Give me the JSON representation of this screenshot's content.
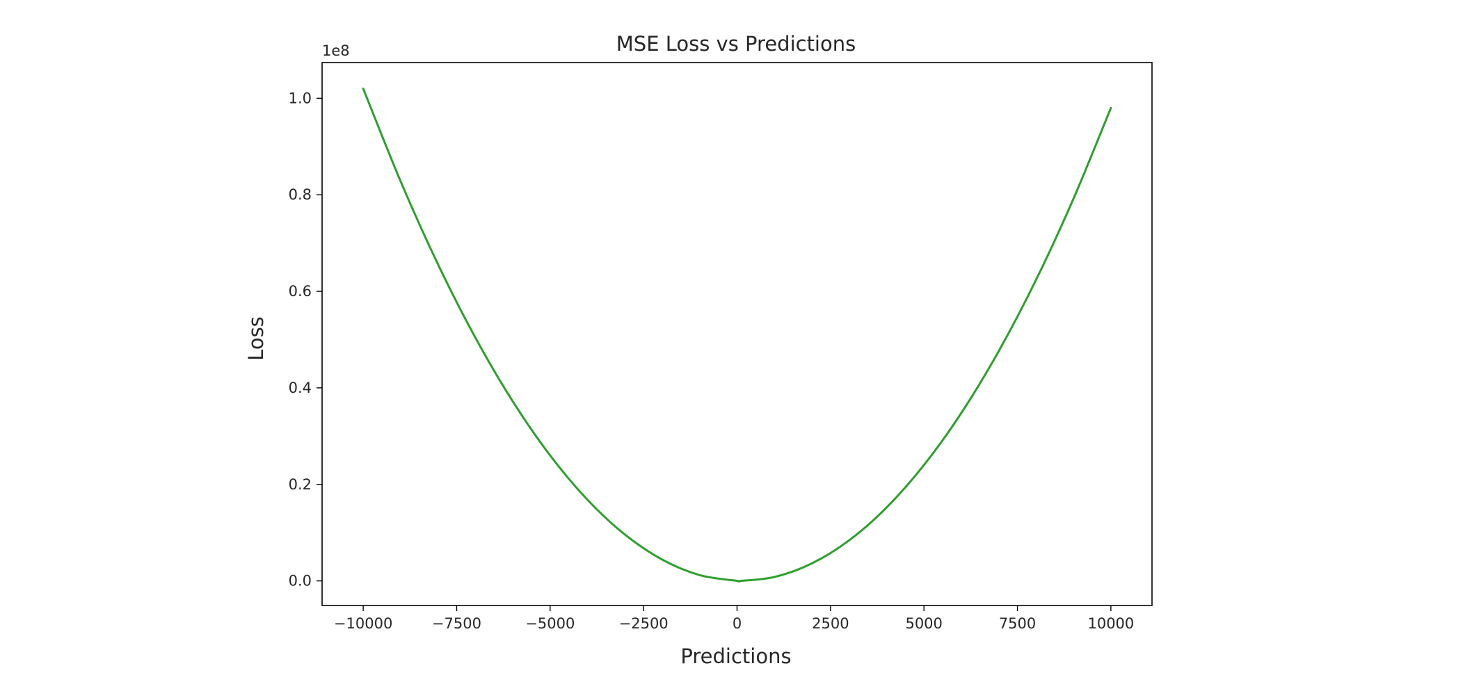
{
  "chart_data": {
    "type": "line",
    "title": "MSE Loss vs Predictions",
    "xlabel": "Predictions",
    "ylabel": "Loss",
    "y_offset_label": "1e8",
    "xlim": [
      -11100,
      11100
    ],
    "ylim": [
      -5100000,
      107400000
    ],
    "x_ticks": [
      -10000,
      -7500,
      -5000,
      -2500,
      0,
      2500,
      5000,
      7500,
      10000
    ],
    "x_tick_labels": [
      "−10000",
      "−7500",
      "−5000",
      "−2500",
      "0",
      "2500",
      "5000",
      "7500",
      "10000"
    ],
    "y_ticks": [
      0,
      20000000,
      40000000,
      60000000,
      80000000,
      100000000
    ],
    "y_tick_labels": [
      "0.0",
      "0.2",
      "0.4",
      "0.6",
      "0.8",
      "1.0"
    ],
    "grid": false,
    "series": [
      {
        "color": "#2ca02c",
        "x": [
          -10000,
          -9000,
          -8000,
          -7000,
          -6000,
          -5000,
          -4000,
          -3000,
          -2000,
          -1000,
          0,
          100,
          1000,
          2000,
          3000,
          4000,
          5000,
          6000,
          7000,
          8000,
          9000,
          10000
        ],
        "y": [
          102000000,
          82800000,
          65600000,
          50400000,
          37200000,
          26000000,
          16800000,
          9600000,
          4400000,
          1200000,
          10000,
          0,
          810000,
          3610000,
          8410000,
          15200000,
          24000000,
          34800000,
          47600000,
          62400000,
          79200000,
          98000000
        ]
      }
    ]
  }
}
